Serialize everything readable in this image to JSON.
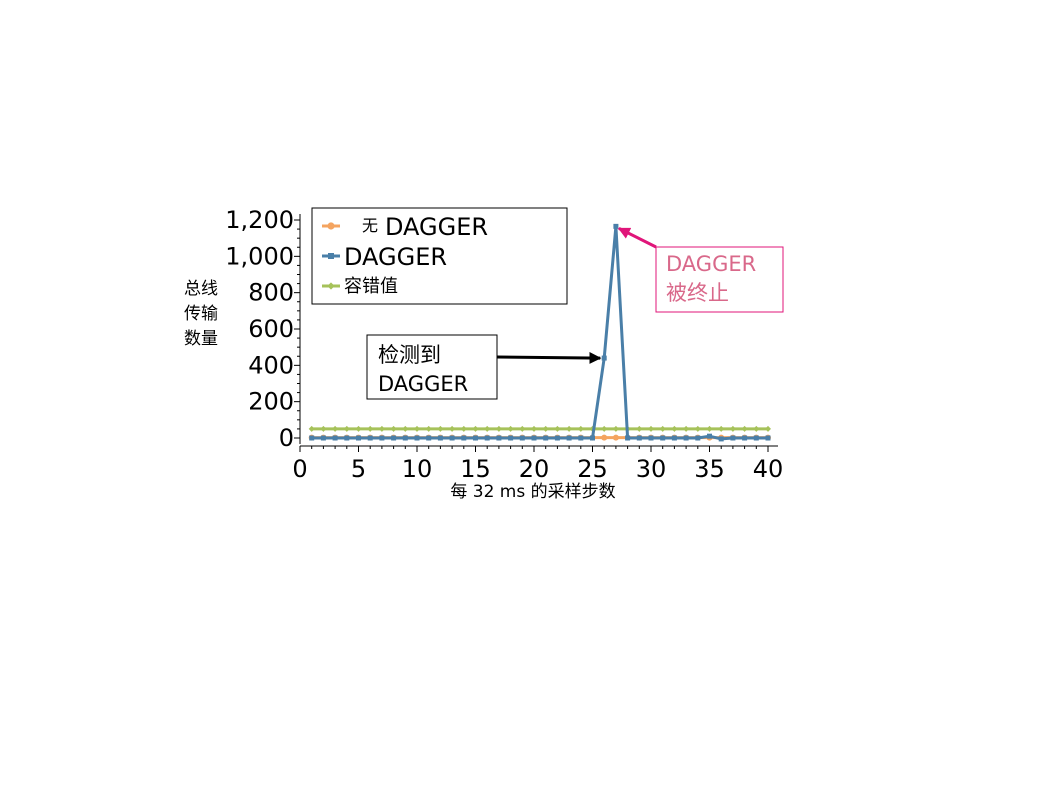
{
  "chart_data": {
    "type": "line",
    "ylabel_lines": [
      "总线",
      "传输",
      "数量"
    ],
    "xlabel": "每  32 ms  的采样步数",
    "xlim": [
      0,
      40
    ],
    "ylim": [
      0,
      1200
    ],
    "x_ticks": [
      0,
      5,
      10,
      15,
      20,
      25,
      30,
      35,
      40
    ],
    "y_ticks": [
      0,
      200,
      400,
      600,
      800,
      1000,
      1200
    ],
    "y_tick_labels": [
      "0",
      "200",
      "400",
      "600",
      "800",
      "1,000",
      "1,200"
    ],
    "grid": false,
    "legend_position": "top-left",
    "series": [
      {
        "name": "无DAGGER",
        "legend_prefix": "无",
        "legend_main": "DAGGER",
        "color": "#f4a460",
        "marker": "circle",
        "x": [
          1,
          2,
          3,
          4,
          5,
          6,
          7,
          8,
          9,
          10,
          11,
          12,
          13,
          14,
          15,
          16,
          17,
          18,
          19,
          20,
          21,
          22,
          23,
          24,
          25,
          26,
          27,
          28,
          29,
          30,
          31,
          32,
          33,
          34,
          35,
          36,
          37,
          38,
          39,
          40
        ],
        "y": [
          2,
          2,
          2,
          2,
          2,
          2,
          2,
          2,
          2,
          2,
          2,
          2,
          2,
          2,
          2,
          2,
          2,
          2,
          2,
          2,
          2,
          2,
          2,
          2,
          2,
          2,
          2,
          2,
          2,
          2,
          2,
          2,
          2,
          2,
          2,
          2,
          2,
          2,
          2,
          2
        ]
      },
      {
        "name": "DAGGER",
        "legend_prefix": "",
        "legend_main": "DAGGER",
        "color": "#4a7fa8",
        "marker": "square",
        "x": [
          1,
          2,
          3,
          4,
          5,
          6,
          7,
          8,
          9,
          10,
          11,
          12,
          13,
          14,
          15,
          16,
          17,
          18,
          19,
          20,
          21,
          22,
          23,
          24,
          25,
          26,
          27,
          28,
          29,
          30,
          31,
          32,
          33,
          34,
          35,
          36,
          37,
          38,
          39,
          40
        ],
        "y": [
          0,
          0,
          0,
          0,
          0,
          0,
          0,
          0,
          0,
          0,
          0,
          0,
          0,
          0,
          0,
          0,
          0,
          0,
          0,
          0,
          0,
          0,
          0,
          0,
          0,
          440,
          1165,
          0,
          0,
          0,
          0,
          0,
          0,
          0,
          10,
          -5,
          0,
          0,
          0,
          0
        ]
      },
      {
        "name": "容错值",
        "legend_prefix": "",
        "legend_main": "容错值",
        "color": "#a6c25a",
        "marker": "diamond",
        "x": [
          1,
          2,
          3,
          4,
          5,
          6,
          7,
          8,
          9,
          10,
          11,
          12,
          13,
          14,
          15,
          16,
          17,
          18,
          19,
          20,
          21,
          22,
          23,
          24,
          25,
          26,
          27,
          28,
          29,
          30,
          31,
          32,
          33,
          34,
          35,
          36,
          37,
          38,
          39,
          40
        ],
        "y": [
          50,
          50,
          50,
          50,
          50,
          50,
          50,
          50,
          50,
          50,
          50,
          50,
          50,
          50,
          50,
          50,
          50,
          50,
          50,
          50,
          50,
          50,
          50,
          50,
          50,
          50,
          50,
          50,
          50,
          50,
          50,
          50,
          50,
          50,
          50,
          50,
          50,
          50,
          50,
          50
        ]
      }
    ],
    "annotations": [
      {
        "id": "detected",
        "lines": [
          "检测到",
          "DAGGER"
        ],
        "color": "#000000",
        "arrow_to": [
          26,
          440
        ]
      },
      {
        "id": "terminated",
        "lines": [
          "DAGGER",
          "被终止"
        ],
        "color": "#d9688a",
        "arrow_to": [
          27,
          1165
        ],
        "arrow_color": "#e0157a"
      }
    ]
  }
}
